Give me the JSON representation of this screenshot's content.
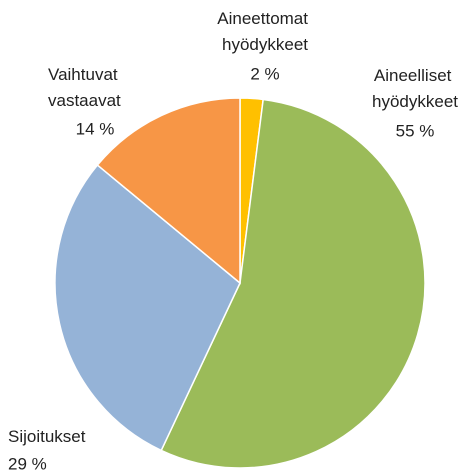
{
  "chart_data": {
    "type": "pie",
    "categories": [
      "Aineettomat hyödykkeet",
      "Aineelliset hyödykkeet",
      "Sijoitukset",
      "Vaihtuvat vastaavat"
    ],
    "values": [
      2,
      55,
      29,
      14
    ],
    "value_labels": [
      "2 %",
      "55 %",
      "29 %",
      "14 %"
    ],
    "colors": [
      "#ffc000",
      "#9bbb59",
      "#95b3d7",
      "#f79646"
    ]
  }
}
